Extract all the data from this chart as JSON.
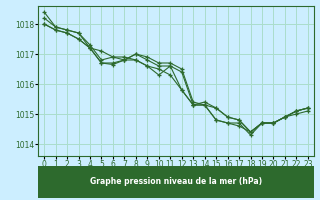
{
  "background_color": "#cceeff",
  "grid_color": "#aaddcc",
  "line_color": "#2d6a2d",
  "xlabel": "Graphe pression niveau de la mer (hPa)",
  "ylim": [
    1013.6,
    1018.6
  ],
  "xlim": [
    -0.5,
    23.5
  ],
  "yticks": [
    1014,
    1015,
    1016,
    1017,
    1018
  ],
  "xticks": [
    0,
    1,
    2,
    3,
    4,
    5,
    6,
    7,
    8,
    9,
    10,
    11,
    12,
    13,
    14,
    15,
    16,
    17,
    18,
    19,
    20,
    21,
    22,
    23
  ],
  "series": [
    [
      1018.4,
      1017.9,
      1017.8,
      1017.7,
      1017.2,
      1017.1,
      1016.9,
      1016.9,
      1016.8,
      1016.6,
      1016.5,
      1016.3,
      1015.8,
      1015.3,
      1015.3,
      1014.8,
      1014.7,
      1014.7,
      1014.3,
      1014.7,
      1014.7,
      1014.9,
      1015.0,
      1015.1
    ],
    [
      1018.2,
      1017.9,
      1017.8,
      1017.7,
      1017.3,
      1016.8,
      1016.9,
      1016.8,
      1016.8,
      1016.6,
      1016.3,
      1016.6,
      1015.8,
      1015.3,
      1015.3,
      1014.8,
      1014.7,
      1014.6,
      1014.4,
      1014.7,
      1014.7,
      1014.9,
      1015.1,
      1015.2
    ],
    [
      1018.0,
      1017.8,
      1017.7,
      1017.5,
      1017.2,
      1016.7,
      1016.7,
      1016.8,
      1017.0,
      1016.8,
      1016.6,
      1016.6,
      1016.4,
      1015.3,
      1015.4,
      1015.2,
      1014.9,
      1014.8,
      1014.4,
      1014.7,
      1014.7,
      1014.9,
      1015.1,
      1015.2
    ],
    [
      1018.0,
      1017.8,
      1017.7,
      1017.5,
      1017.2,
      1016.7,
      1016.65,
      1016.8,
      1017.0,
      1016.9,
      1016.7,
      1016.7,
      1016.5,
      1015.4,
      1015.3,
      1015.2,
      1014.9,
      1014.8,
      1014.4,
      1014.7,
      1014.7,
      1014.9,
      1015.1,
      1015.2
    ]
  ]
}
